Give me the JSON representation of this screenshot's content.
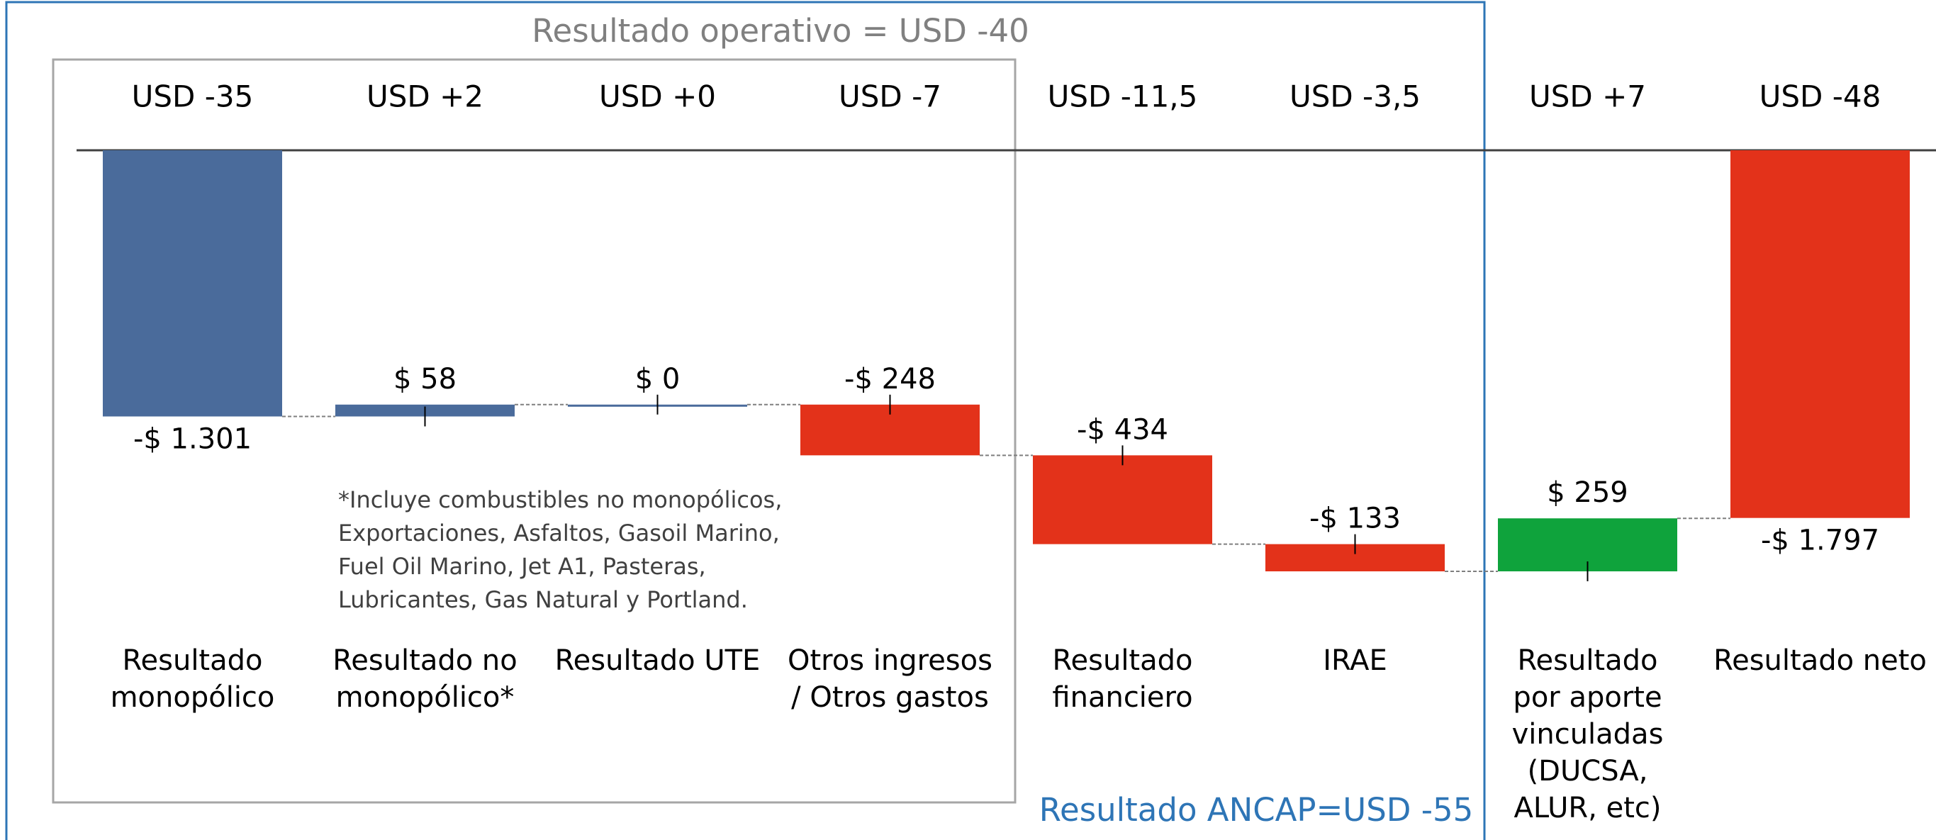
{
  "chart_data": {
    "type": "waterfall",
    "box_title": "Resultado operativo = USD -40",
    "outer_label": "Resultado ANCAP=USD -55",
    "top_labels": [
      "USD -35",
      "USD +2",
      "USD +0",
      "USD -7",
      "USD -11,5",
      "USD -3,5",
      "USD +7",
      "USD -48"
    ],
    "categories": [
      [
        "Resultado",
        "monopólico"
      ],
      [
        "Resultado no",
        "monopólico*"
      ],
      [
        "Resultado UTE"
      ],
      [
        "Otros ingresos",
        "/ Otros gastos"
      ],
      [
        "Resultado",
        "financiero"
      ],
      [
        "IRAE"
      ],
      [
        "Resultado",
        "por aporte",
        "vinculadas",
        "(DUCSA,",
        "ALUR, etc)"
      ],
      [
        "Resultado neto"
      ]
    ],
    "values": [
      -1301,
      58,
      0,
      -248,
      -434,
      -133,
      259,
      -1797
    ],
    "value_labels": [
      "-$ 1.301",
      "$ 58",
      "$ 0",
      "-$ 248",
      "-$ 434",
      "-$ 133",
      "$ 259",
      "-$ 1.797"
    ],
    "is_total": [
      false,
      false,
      false,
      false,
      false,
      false,
      false,
      true
    ],
    "colors": [
      "#4a6b9b",
      "#4a6b9b",
      "#4a6b9b",
      "#e3321a",
      "#e3321a",
      "#e3321a",
      "#0fa33c",
      "#e3321a"
    ],
    "note": [
      "*Incluye combustibles no monopólicos,",
      "Exportaciones, Asfaltos, Gasoil Marino,",
      "Fuel Oil Marino, Jet A1, Pasteras,",
      "Lubricantes, Gas Natural y Portland."
    ]
  }
}
